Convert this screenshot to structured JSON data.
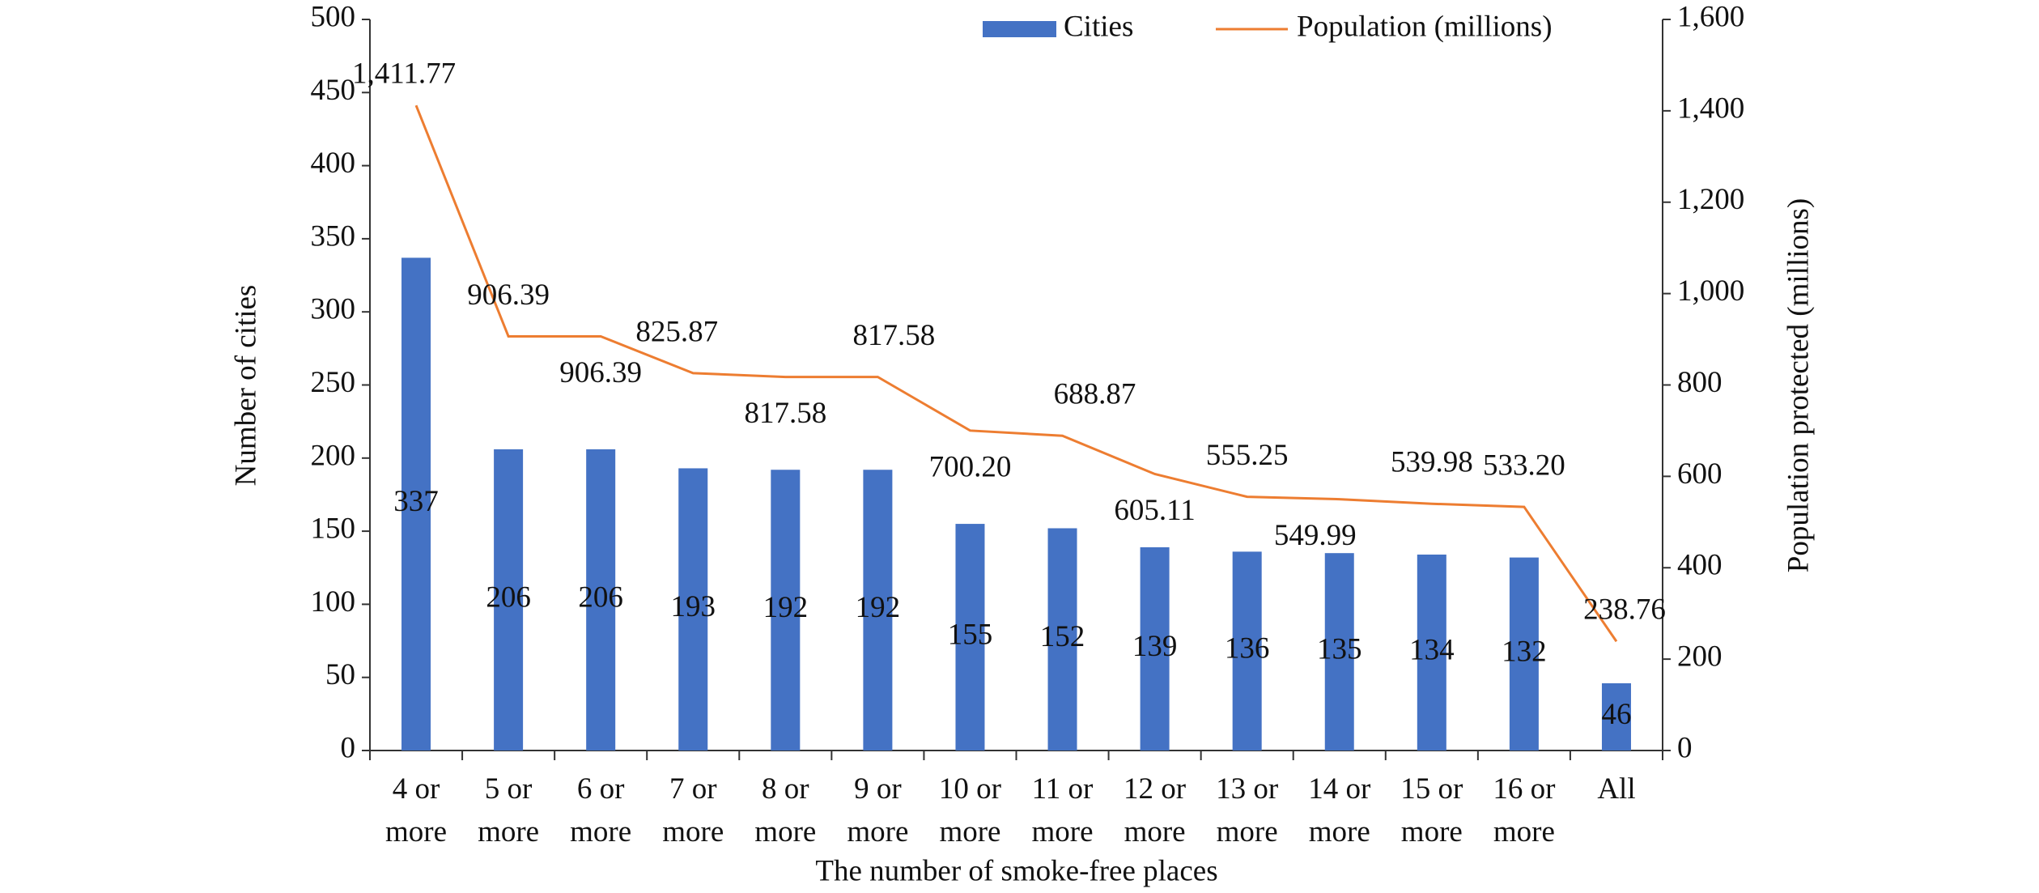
{
  "chart_data": {
    "type": "bar-line",
    "x_label": "The number of smoke-free places",
    "y_label": "Number of cities",
    "y2_label": "Population protected (millions)",
    "categories": [
      "4 or more",
      "5 or more",
      "6 or more",
      "7 or more",
      "8 or more",
      "9 or more",
      "10 or more",
      "11 or more",
      "12 or more",
      "13 or more",
      "14 or more",
      "15 or more",
      "16 or more",
      "All"
    ],
    "series": [
      {
        "name": "Cities",
        "type": "bar",
        "color": "#4472c4",
        "axis": "y",
        "values": [
          337,
          206,
          206,
          193,
          192,
          192,
          155,
          152,
          139,
          136,
          135,
          134,
          132,
          46
        ]
      },
      {
        "name": "Population (millions)",
        "type": "line",
        "color": "#ed7d31",
        "axis": "y2",
        "values": [
          1411.77,
          906.39,
          906.39,
          825.87,
          817.58,
          817.58,
          700.2,
          688.87,
          605.11,
          555.25,
          549.99,
          539.98,
          533.2,
          238.76
        ],
        "value_labels": [
          "1,411.77",
          "906.39",
          "906.39",
          "825.87",
          "817.58",
          "817.58",
          "700.20",
          "688.87",
          "605.11",
          "555.25",
          "549.99",
          "539.98",
          "533.20",
          "238.76"
        ]
      }
    ],
    "ylim": [
      0,
      500
    ],
    "yticks": [
      0,
      50,
      100,
      150,
      200,
      250,
      300,
      350,
      400,
      450,
      500
    ],
    "y2lim": [
      0,
      1600
    ],
    "y2ticks": [
      0,
      200,
      400,
      600,
      800,
      {
        "value": 1000,
        "label": "1,000"
      },
      {
        "value": 1200,
        "label": "1,200"
      },
      {
        "value": 1400,
        "label": "1,400"
      },
      {
        "value": 1600,
        "label": "1,600"
      }
    ],
    "legend": "top"
  }
}
